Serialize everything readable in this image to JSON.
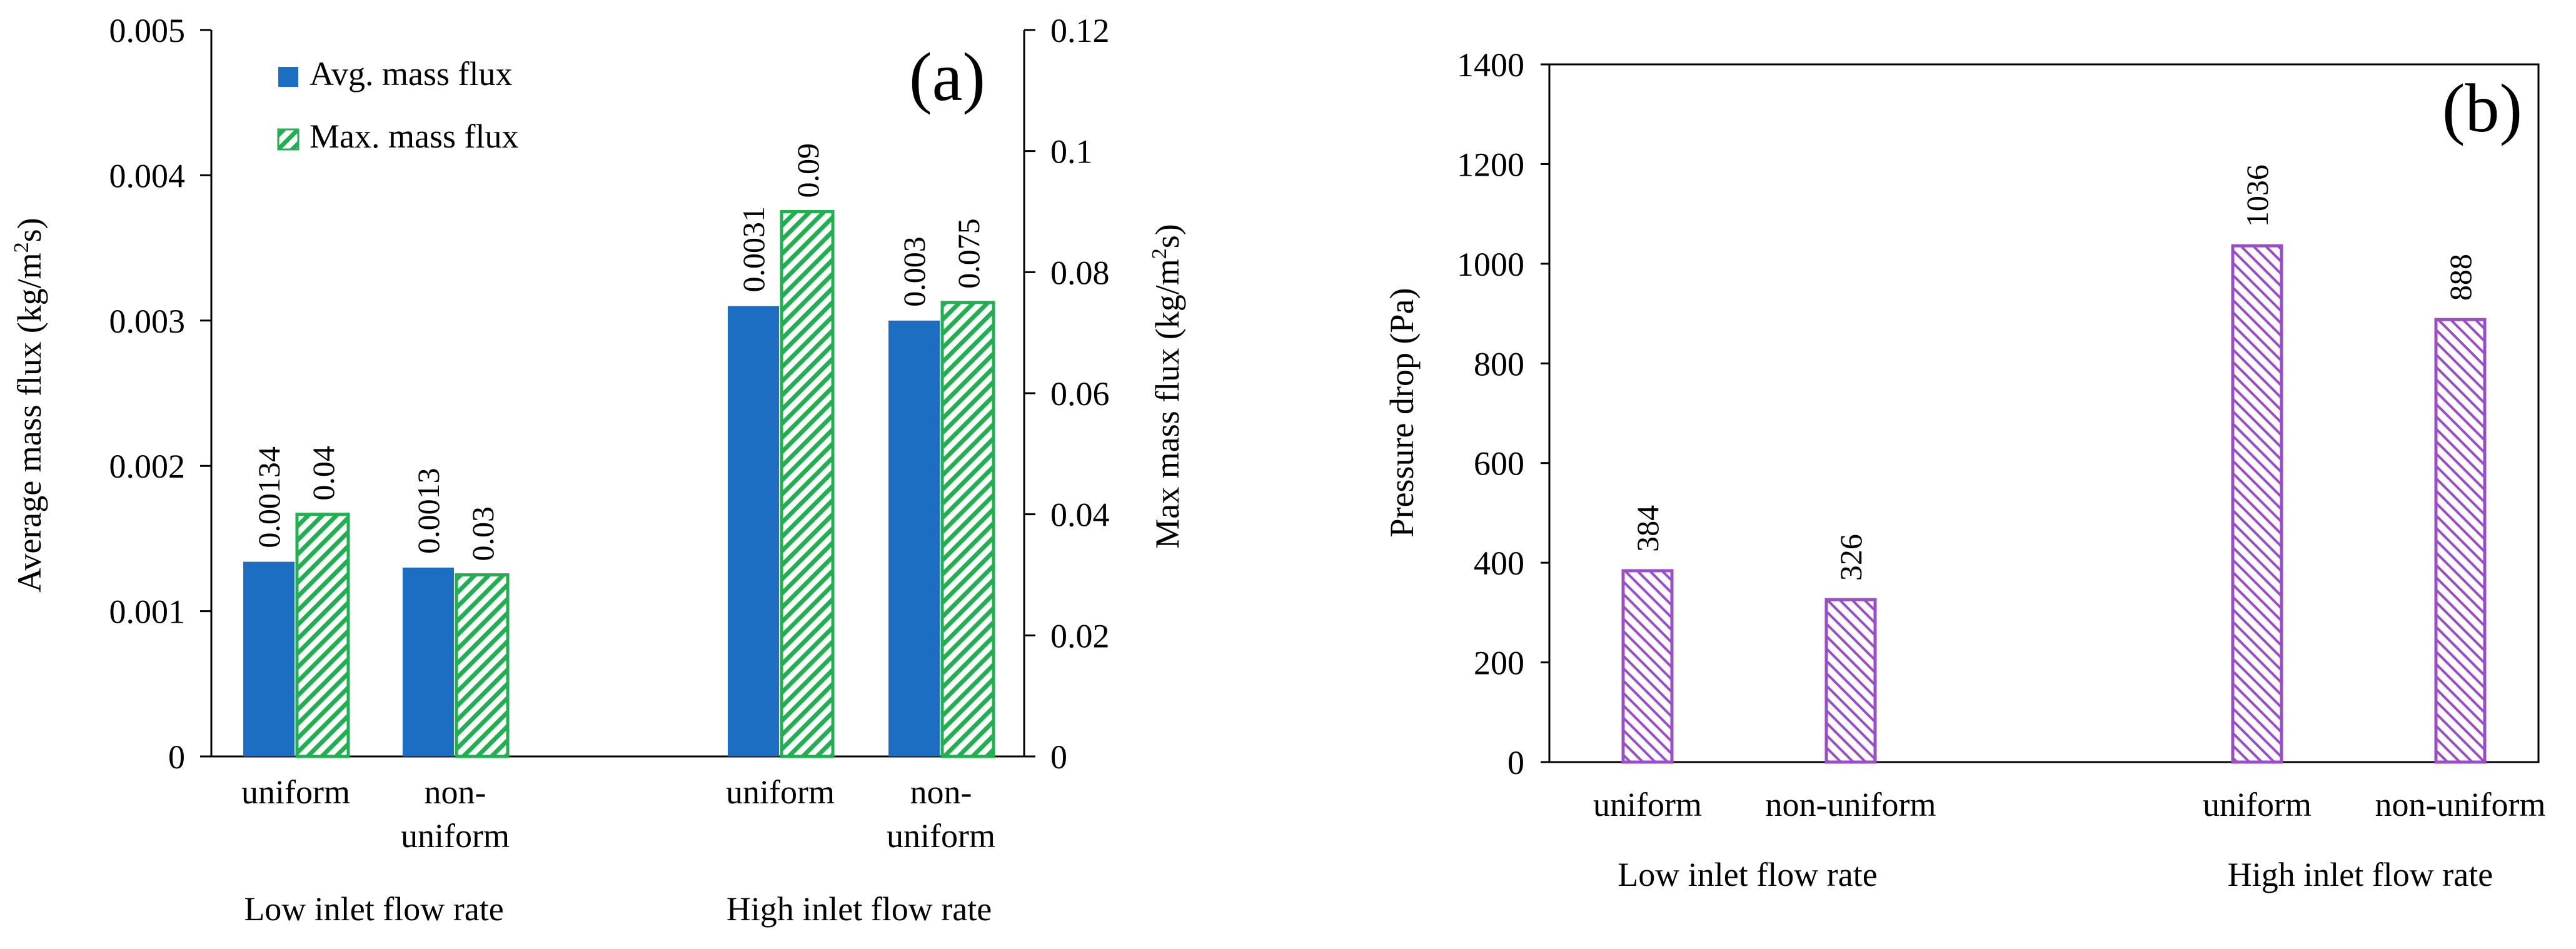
{
  "colors": {
    "avg": "#1B6EC2",
    "max": "#20B050",
    "pressure": "#9B4DC8",
    "axis": "#000000"
  },
  "chart_data": [
    {
      "type": "bar",
      "panel_label": "(a)",
      "groups": [
        {
          "group_label": "Low inlet flow rate",
          "categories": [
            {
              "label_lines": [
                "uniform"
              ]
            },
            {
              "label_lines": [
                "non-",
                "uniform"
              ]
            }
          ]
        },
        {
          "group_label": "High inlet flow rate",
          "categories": [
            {
              "label_lines": [
                "uniform"
              ]
            },
            {
              "label_lines": [
                "non-",
                "uniform"
              ]
            }
          ]
        }
      ],
      "series": [
        {
          "name": "Avg. mass flux",
          "axis": "left",
          "pattern": "solid",
          "values": [
            0.00134,
            0.0013,
            0.0031,
            0.003
          ],
          "data_labels": [
            "0.00134",
            "0.0013",
            "0.0031",
            "0.003"
          ]
        },
        {
          "name": "Max. mass flux",
          "axis": "right",
          "pattern": "hatched",
          "values": [
            0.04,
            0.03,
            0.09,
            0.075
          ],
          "data_labels": [
            "0.04",
            "0.03",
            "0.09",
            "0.075"
          ]
        }
      ],
      "y_left": {
        "label_parts": [
          "Average mass flux (kg/m",
          "2",
          "s)"
        ],
        "lim": [
          0,
          0.005
        ],
        "ticks": [
          0,
          0.001,
          0.002,
          0.003,
          0.004,
          0.005
        ],
        "tick_labels": [
          "0",
          "0.001",
          "0.002",
          "0.003",
          "0.004",
          "0.005"
        ]
      },
      "y_right": {
        "label_parts": [
          "Max mass flux (kg/m",
          "2",
          "s)"
        ],
        "lim": [
          0,
          0.12
        ],
        "ticks": [
          0,
          0.02,
          0.04,
          0.06,
          0.08,
          0.1,
          0.12
        ],
        "tick_labels": [
          "0",
          "0.02",
          "0.04",
          "0.06",
          "0.08",
          "0.1",
          "0.12"
        ]
      },
      "legend_position": "top-left",
      "grid": false
    },
    {
      "type": "bar",
      "panel_label": "(b)",
      "groups": [
        {
          "group_label": "Low inlet flow rate",
          "categories": [
            {
              "label_lines": [
                "uniform"
              ]
            },
            {
              "label_lines": [
                "non-uniform"
              ]
            }
          ]
        },
        {
          "group_label": "High inlet flow rate",
          "categories": [
            {
              "label_lines": [
                "uniform"
              ]
            },
            {
              "label_lines": [
                "non-uniform"
              ]
            }
          ]
        }
      ],
      "series": [
        {
          "name": "Pressure drop",
          "pattern": "hatched",
          "values": [
            384,
            326,
            1036,
            888
          ],
          "data_labels": [
            "384",
            "326",
            "1036",
            "888"
          ]
        }
      ],
      "y": {
        "label": "Pressure drop (Pa)",
        "lim": [
          0,
          1400
        ],
        "ticks": [
          0,
          200,
          400,
          600,
          800,
          1000,
          1200,
          1400
        ],
        "tick_labels": [
          "0",
          "200",
          "400",
          "600",
          "800",
          "1000",
          "1200",
          "1400"
        ]
      },
      "grid": false
    }
  ]
}
